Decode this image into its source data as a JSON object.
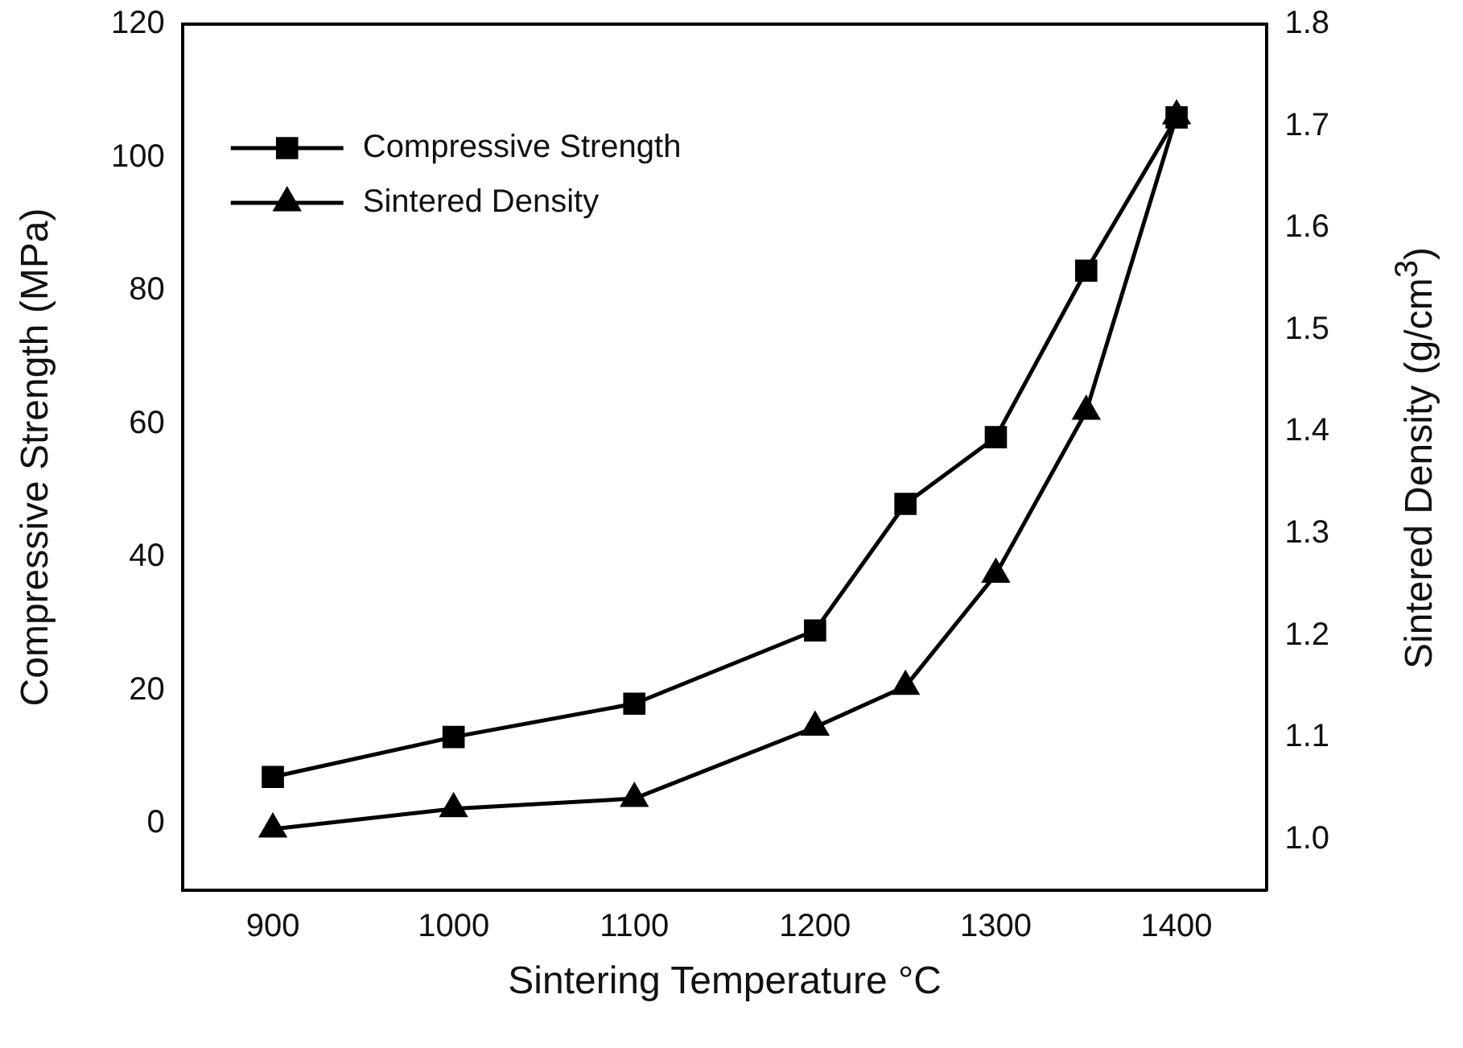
{
  "chart_data": {
    "type": "line",
    "xlabel": "Sintering Temperature °C",
    "ylabel": "Compressive Strength (MPa)",
    "y2label": "Sintered Density (g/cm$^{3}$)",
    "x": [
      900,
      1000,
      1100,
      1200,
      1250,
      1300,
      1350,
      1400
    ],
    "series": [
      {
        "name": "Compressive Strength",
        "color": "#000000",
        "marker": "square",
        "values": [
          7,
          13,
          18,
          29,
          48,
          58,
          83,
          106
        ]
      },
      {
        "name": "Sintered Density",
        "color": "#000000",
        "marker": "triangle",
        "axis": "y2",
        "values": [
          1.01,
          1.03,
          1.04,
          1.11,
          1.15,
          1.26,
          1.42,
          1.71
        ]
      }
    ],
    "xlim": [
      850,
      1450
    ],
    "xticks": [
      900,
      1000,
      1100,
      1200,
      1300,
      1400
    ],
    "ylim": [
      -10,
      120
    ],
    "yticks": [
      0,
      20,
      40,
      60,
      80,
      100,
      120
    ],
    "y2lim": [
      0.95,
      1.8
    ],
    "y2ticks": [
      {
        "value": 1.0,
        "label": "1.0"
      },
      1.1,
      1.2,
      1.3,
      1.4,
      1.5,
      1.6,
      1.7,
      1.8
    ],
    "grid": false,
    "legend": "top left",
    "line_style": "solid"
  }
}
